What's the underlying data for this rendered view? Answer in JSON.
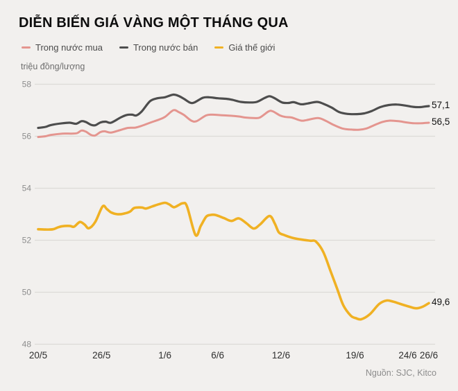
{
  "chart_data": {
    "type": "line",
    "title": "DIỄN BIẾN GIÁ VÀNG MỘT THÁNG QUA",
    "unit_label": "triệu đồng/lượng",
    "source": "Nguồn: SJC, Kitco",
    "ylim": [
      48,
      58
    ],
    "y_ticks": [
      58,
      56,
      54,
      52,
      50,
      48
    ],
    "grid": true,
    "legend_position": "top-left",
    "x_axis_note": "day index counted from 20/5 (day 0) to 26/6 (day 37)",
    "x_ticks": [
      {
        "label": "20/5",
        "day": 0
      },
      {
        "label": "26/5",
        "day": 6
      },
      {
        "label": "1/6",
        "day": 12
      },
      {
        "label": "6/6",
        "day": 17
      },
      {
        "label": "12/6",
        "day": 23
      },
      {
        "label": "19/6",
        "day": 30
      },
      {
        "label": "24/6",
        "day": 35
      },
      {
        "label": "26/6",
        "day": 37
      }
    ],
    "series": [
      {
        "name": "Trong nước mua",
        "color": "#e4958f",
        "width": 3,
        "end_label": "56,5",
        "end_value": 56.5,
        "points": [
          [
            0,
            55.97
          ],
          [
            0.7,
            56.0
          ],
          [
            1.2,
            56.05
          ],
          [
            2.3,
            56.1
          ],
          [
            3.2,
            56.1
          ],
          [
            3.7,
            56.12
          ],
          [
            4.1,
            56.22
          ],
          [
            4.5,
            56.18
          ],
          [
            5.0,
            56.05
          ],
          [
            5.4,
            56.03
          ],
          [
            5.9,
            56.16
          ],
          [
            6.3,
            56.19
          ],
          [
            6.9,
            56.14
          ],
          [
            7.8,
            56.24
          ],
          [
            8.5,
            56.32
          ],
          [
            9.2,
            56.33
          ],
          [
            9.8,
            56.4
          ],
          [
            10.6,
            56.52
          ],
          [
            11.3,
            56.62
          ],
          [
            12.0,
            56.74
          ],
          [
            12.8,
            57.0
          ],
          [
            13.3,
            56.93
          ],
          [
            13.8,
            56.82
          ],
          [
            14.5,
            56.6
          ],
          [
            15.0,
            56.58
          ],
          [
            15.9,
            56.8
          ],
          [
            16.5,
            56.83
          ],
          [
            17.3,
            56.81
          ],
          [
            18.2,
            56.79
          ],
          [
            19.0,
            56.76
          ],
          [
            19.6,
            56.72
          ],
          [
            20.4,
            56.7
          ],
          [
            21.0,
            56.72
          ],
          [
            21.8,
            56.95
          ],
          [
            22.2,
            56.96
          ],
          [
            22.9,
            56.8
          ],
          [
            23.4,
            56.74
          ],
          [
            24.0,
            56.72
          ],
          [
            24.9,
            56.6
          ],
          [
            25.4,
            56.62
          ],
          [
            26.5,
            56.7
          ],
          [
            27.2,
            56.6
          ],
          [
            27.9,
            56.45
          ],
          [
            28.8,
            56.3
          ],
          [
            29.5,
            56.26
          ],
          [
            30.4,
            56.25
          ],
          [
            31.1,
            56.3
          ],
          [
            31.8,
            56.42
          ],
          [
            32.6,
            56.55
          ],
          [
            33.3,
            56.6
          ],
          [
            34.1,
            56.58
          ],
          [
            34.9,
            56.53
          ],
          [
            35.6,
            56.5
          ],
          [
            36.3,
            56.5
          ],
          [
            37,
            56.52
          ]
        ]
      },
      {
        "name": "Trong nước bán",
        "color": "#4d4d4d",
        "width": 3.2,
        "end_label": "57,1",
        "end_value": 57.1,
        "points": [
          [
            0,
            56.32
          ],
          [
            0.7,
            56.36
          ],
          [
            1.2,
            56.43
          ],
          [
            2.3,
            56.5
          ],
          [
            3.0,
            56.52
          ],
          [
            3.6,
            56.48
          ],
          [
            4.1,
            56.58
          ],
          [
            4.5,
            56.55
          ],
          [
            5.0,
            56.44
          ],
          [
            5.4,
            56.42
          ],
          [
            5.9,
            56.53
          ],
          [
            6.4,
            56.56
          ],
          [
            6.9,
            56.52
          ],
          [
            7.8,
            56.72
          ],
          [
            8.4,
            56.82
          ],
          [
            8.9,
            56.83
          ],
          [
            9.3,
            56.8
          ],
          [
            9.8,
            56.95
          ],
          [
            10.6,
            57.35
          ],
          [
            11.3,
            57.46
          ],
          [
            12.0,
            57.5
          ],
          [
            12.8,
            57.6
          ],
          [
            13.3,
            57.55
          ],
          [
            13.8,
            57.44
          ],
          [
            14.4,
            57.29
          ],
          [
            14.8,
            57.3
          ],
          [
            15.6,
            57.48
          ],
          [
            16.2,
            57.5
          ],
          [
            17.0,
            57.46
          ],
          [
            17.8,
            57.44
          ],
          [
            18.4,
            57.4
          ],
          [
            19.2,
            57.32
          ],
          [
            20.0,
            57.3
          ],
          [
            20.7,
            57.32
          ],
          [
            21.4,
            57.46
          ],
          [
            21.9,
            57.54
          ],
          [
            22.4,
            57.46
          ],
          [
            23.1,
            57.3
          ],
          [
            23.7,
            57.28
          ],
          [
            24.2,
            57.31
          ],
          [
            24.9,
            57.23
          ],
          [
            25.5,
            57.26
          ],
          [
            26.4,
            57.32
          ],
          [
            27.0,
            57.25
          ],
          [
            27.8,
            57.1
          ],
          [
            28.5,
            56.93
          ],
          [
            29.3,
            56.86
          ],
          [
            30.2,
            56.85
          ],
          [
            30.9,
            56.88
          ],
          [
            31.6,
            56.97
          ],
          [
            32.4,
            57.12
          ],
          [
            33.2,
            57.2
          ],
          [
            34.0,
            57.22
          ],
          [
            34.8,
            57.18
          ],
          [
            35.5,
            57.13
          ],
          [
            36.2,
            57.12
          ],
          [
            36.6,
            57.14
          ],
          [
            37,
            57.16
          ]
        ]
      },
      {
        "name": "Giá thế giới",
        "color": "#f0b123",
        "width": 3.6,
        "end_label": "49,6",
        "end_value": 49.6,
        "points": [
          [
            0,
            52.42
          ],
          [
            0.7,
            52.41
          ],
          [
            1.4,
            52.42
          ],
          [
            1.9,
            52.5
          ],
          [
            2.3,
            52.54
          ],
          [
            3.0,
            52.55
          ],
          [
            3.4,
            52.52
          ],
          [
            3.95,
            52.7
          ],
          [
            4.4,
            52.6
          ],
          [
            4.8,
            52.46
          ],
          [
            5.4,
            52.7
          ],
          [
            6.1,
            53.3
          ],
          [
            6.5,
            53.2
          ],
          [
            6.9,
            53.07
          ],
          [
            7.5,
            53.0
          ],
          [
            8.1,
            53.02
          ],
          [
            8.7,
            53.1
          ],
          [
            9.1,
            53.24
          ],
          [
            9.8,
            53.26
          ],
          [
            10.2,
            53.22
          ],
          [
            10.8,
            53.3
          ],
          [
            11.4,
            53.38
          ],
          [
            12.0,
            53.44
          ],
          [
            12.4,
            53.38
          ],
          [
            12.85,
            53.27
          ],
          [
            13.3,
            53.35
          ],
          [
            13.7,
            53.42
          ],
          [
            14.1,
            53.3
          ],
          [
            14.9,
            52.2
          ],
          [
            15.4,
            52.55
          ],
          [
            15.9,
            52.9
          ],
          [
            16.3,
            52.97
          ],
          [
            16.8,
            52.97
          ],
          [
            17.6,
            52.85
          ],
          [
            18.3,
            52.74
          ],
          [
            19.0,
            52.84
          ],
          [
            19.7,
            52.66
          ],
          [
            20.4,
            52.45
          ],
          [
            21.0,
            52.6
          ],
          [
            21.9,
            52.93
          ],
          [
            22.4,
            52.65
          ],
          [
            22.8,
            52.3
          ],
          [
            23.3,
            52.2
          ],
          [
            24.0,
            52.1
          ],
          [
            25.0,
            52.02
          ],
          [
            25.8,
            51.98
          ],
          [
            26.3,
            51.95
          ],
          [
            27.0,
            51.55
          ],
          [
            27.7,
            50.8
          ],
          [
            28.3,
            50.15
          ],
          [
            28.9,
            49.5
          ],
          [
            29.6,
            49.1
          ],
          [
            30.1,
            49.0
          ],
          [
            30.6,
            48.96
          ],
          [
            31.4,
            49.15
          ],
          [
            32.3,
            49.55
          ],
          [
            33.0,
            49.68
          ],
          [
            33.6,
            49.64
          ],
          [
            34.3,
            49.55
          ],
          [
            35.1,
            49.45
          ],
          [
            35.8,
            49.38
          ],
          [
            36.4,
            49.44
          ],
          [
            37,
            49.58
          ]
        ]
      }
    ]
  },
  "colors": {
    "background": "#f2f0ee",
    "gridline": "#dcdad7",
    "title_text": "#0d0d0d",
    "legend_text": "#4a4a4a",
    "y_tick_text": "#8c8c8c",
    "x_tick_text": "#2e2e2e",
    "end_label_text": "#111111",
    "source_text": "#8c8c8c"
  }
}
